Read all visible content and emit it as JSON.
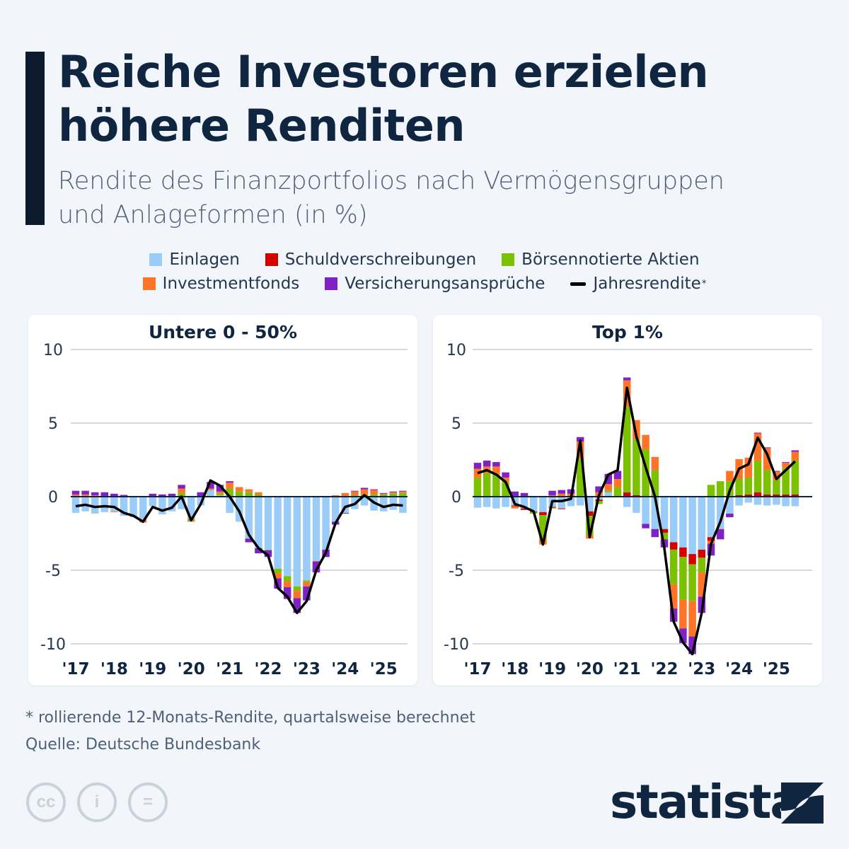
{
  "header": {
    "title_line1": "Reiche Investoren erzielen",
    "title_line2": "höhere Renditen",
    "subtitle_line1": "Rendite des Finanzportfolios nach Vermögensgruppen",
    "subtitle_line2": "und Anlageformen (in %)"
  },
  "legend": [
    {
      "label": "Einlagen",
      "color": "#99ccf9"
    },
    {
      "label": "Schuldverschreibungen",
      "color": "#d60000"
    },
    {
      "label": "Börsennotierte Aktien",
      "color": "#7bc100"
    },
    {
      "label": "Investmentfonds",
      "color": "#ff7426"
    },
    {
      "label": "Versicherungsansprüche",
      "color": "#7e22c8"
    },
    {
      "label": "Jahresrendite",
      "sup": "*",
      "color": "#000000"
    }
  ],
  "footer": {
    "note": "* rollierende 12-Monats-Rendite, quartalsweise berechnet",
    "source": "Quelle: Deutsche Bundesbank",
    "brand": "statista"
  },
  "chart_data": [
    {
      "type": "bar",
      "stacked": true,
      "title": "Untere 0 - 50%",
      "ylim": [
        -10,
        10
      ],
      "yticks": [
        "10",
        "5",
        "0",
        "-5",
        "-10"
      ],
      "ytick_values": [
        10,
        5,
        0,
        -5,
        -10
      ],
      "xtick_labels": [
        "'17",
        "'18",
        "'19",
        "'20",
        "'21",
        "'22",
        "'23",
        "'24",
        "'25"
      ],
      "periods": "quarterly 2017 Q1 – 2025 Q3",
      "grid": true,
      "series": [
        {
          "name": "Einlagen",
          "values": [
            -1.1,
            -1.0,
            -1.15,
            -1.05,
            -1.0,
            -1.3,
            -1.4,
            -1.6,
            -0.65,
            -1.2,
            -1.0,
            -0.85,
            -1.5,
            -0.6,
            0.45,
            0.1,
            -1.1,
            -1.7,
            -2.85,
            -3.5,
            -3.6,
            -4.9,
            -5.4,
            -6.1,
            -5.7,
            -4.4,
            -3.6,
            -1.7,
            -1.1,
            -0.85,
            -0.6,
            -0.95,
            -1.0,
            -0.9,
            -1.1
          ]
        },
        {
          "name": "Schuldverschreibungen",
          "values": [
            0,
            0,
            0,
            0,
            0,
            0,
            0,
            0,
            0,
            0,
            0,
            0,
            0,
            0,
            0,
            0,
            0,
            0,
            0,
            0,
            0,
            0,
            0,
            0,
            0,
            -0.05,
            0,
            0,
            0,
            0,
            0,
            0,
            0,
            0,
            0
          ]
        },
        {
          "name": "Börsennotierte Aktien",
          "values": [
            0.05,
            0.05,
            0,
            0,
            0,
            0,
            0,
            0,
            0,
            0,
            0,
            0.25,
            -0.1,
            0,
            0,
            0.1,
            0.55,
            0.35,
            0.3,
            0.15,
            -0.05,
            -0.3,
            -0.35,
            -0.3,
            -0.1,
            0.05,
            0.05,
            0.05,
            0.05,
            0.1,
            0.15,
            0.15,
            0.15,
            0.2,
            0.25
          ]
        },
        {
          "name": "Investmentfonds",
          "values": [
            0.1,
            0.1,
            0.1,
            0.05,
            -0.05,
            0,
            0,
            -0.15,
            0,
            0,
            0,
            0.3,
            -0.1,
            0,
            0.1,
            0.15,
            0.4,
            0.3,
            0.2,
            0.15,
            0,
            -0.35,
            -0.4,
            -0.5,
            -0.3,
            0,
            0,
            0.05,
            0.2,
            0.25,
            0.35,
            0.3,
            0.05,
            0.1,
            0.1
          ]
        },
        {
          "name": "Versicherungsansprüche",
          "values": [
            0.25,
            0.25,
            0.2,
            0.25,
            0.2,
            0.12,
            0.05,
            0.05,
            0.2,
            0.15,
            0.2,
            0.25,
            0.05,
            0.3,
            0.45,
            0.45,
            0.1,
            0,
            -0.25,
            -0.35,
            -0.45,
            -0.7,
            -0.8,
            -1.0,
            -0.95,
            -0.7,
            -0.5,
            -0.2,
            -0.05,
            0.05,
            0.1,
            0.05,
            0.05,
            0.05,
            0.05
          ]
        },
        {
          "name": "Jahresrendite",
          "type": "line",
          "values": [
            -0.65,
            -0.55,
            -0.7,
            -0.65,
            -0.7,
            -1.1,
            -1.3,
            -1.7,
            -0.7,
            -0.95,
            -0.75,
            0,
            -1.6,
            -0.5,
            1.1,
            0.75,
            0,
            -1.0,
            -2.6,
            -3.5,
            -4.0,
            -6.2,
            -6.8,
            -7.9,
            -7.1,
            -5.0,
            -3.8,
            -1.8,
            -0.7,
            -0.5,
            0.1,
            -0.4,
            -0.7,
            -0.55,
            -0.6
          ]
        }
      ]
    },
    {
      "type": "bar",
      "stacked": true,
      "title": "Top 1%",
      "ylim": [
        -10,
        10
      ],
      "yticks": [
        "10",
        "5",
        "0",
        "-5",
        "-10"
      ],
      "ytick_values": [
        10,
        5,
        0,
        -5,
        -10
      ],
      "xtick_labels": [
        "'17",
        "'18",
        "'19",
        "'20",
        "'21",
        "'22",
        "'23",
        "'24",
        "'25"
      ],
      "periods": "quarterly 2017 Q1 – 2025 Q3",
      "grid": true,
      "series": [
        {
          "name": "Einlagen",
          "values": [
            -0.75,
            -0.7,
            -0.8,
            -0.7,
            -0.6,
            -0.8,
            -1.0,
            -1.05,
            -0.7,
            -0.8,
            -0.65,
            -0.6,
            -1.0,
            -0.2,
            0.3,
            0.05,
            -0.7,
            -1.1,
            -1.85,
            -2.2,
            -2.2,
            -3.1,
            -3.45,
            -3.9,
            -3.6,
            -2.75,
            -2.2,
            -1.15,
            -0.6,
            -0.4,
            -0.55,
            -0.6,
            -0.55,
            -0.65,
            -0.65
          ]
        },
        {
          "name": "Schuldverschreibungen",
          "values": [
            0,
            0,
            0,
            0,
            -0.05,
            -0.1,
            -0.05,
            -0.2,
            -0.05,
            -0.05,
            0,
            0.05,
            -0.3,
            -0.1,
            0,
            0,
            0.3,
            0.1,
            0,
            0,
            -0.25,
            -0.5,
            -0.65,
            -0.7,
            -0.55,
            -0.25,
            -0.05,
            0.05,
            0.1,
            0.15,
            0.3,
            0.15,
            0.15,
            0.15,
            0.15
          ]
        },
        {
          "name": "Börsennotierte Aktien",
          "values": [
            1.3,
            1.6,
            1.5,
            1.0,
            0.05,
            0.05,
            -0.1,
            -1.6,
            -0.05,
            0,
            0,
            2.5,
            -1.3,
            -0.2,
            0.1,
            0.6,
            5.8,
            3.8,
            3.2,
            1.8,
            -0.45,
            -2.35,
            -2.9,
            -2.5,
            -1.0,
            0.8,
            1.05,
            1.0,
            1.1,
            1.15,
            2.15,
            1.65,
            1.0,
            1.8,
            2.3
          ]
        },
        {
          "name": "Investmentfonds",
          "values": [
            0.6,
            0.45,
            0.55,
            0.3,
            -0.15,
            0,
            0,
            -0.4,
            0.1,
            0.2,
            0.2,
            1.2,
            -0.25,
            0.3,
            0.45,
            0.55,
            1.8,
            1.3,
            1.0,
            0.9,
            0,
            -1.65,
            -1.95,
            -2.4,
            -1.65,
            -0.2,
            0,
            0.7,
            1.35,
            1.35,
            1.85,
            1.5,
            0.55,
            0.35,
            0.6
          ]
        },
        {
          "name": "Versicherungsansprüche",
          "values": [
            0.4,
            0.4,
            0.3,
            0.35,
            0.3,
            0.2,
            0.05,
            0.05,
            0.3,
            0.25,
            0.3,
            0.3,
            0,
            0.4,
            0.7,
            0.55,
            0.2,
            0,
            -0.3,
            -0.55,
            -0.55,
            -0.9,
            -1.0,
            -1.2,
            -1.1,
            -0.8,
            -0.65,
            -0.25,
            0,
            0,
            0.05,
            0.05,
            0.05,
            0.05,
            0.1
          ]
        },
        {
          "name": "Jahresrendite",
          "type": "line",
          "values": [
            1.6,
            1.8,
            1.5,
            1.0,
            -0.5,
            -0.7,
            -1.0,
            -3.25,
            -0.3,
            -0.3,
            -0.15,
            3.8,
            -2.75,
            0.1,
            1.5,
            1.8,
            7.4,
            4.1,
            2.0,
            0.0,
            -3.5,
            -8.5,
            -9.9,
            -10.7,
            -7.9,
            -3.2,
            -1.7,
            0.4,
            1.9,
            2.2,
            4.0,
            2.9,
            1.2,
            1.8,
            2.4
          ]
        }
      ]
    }
  ]
}
